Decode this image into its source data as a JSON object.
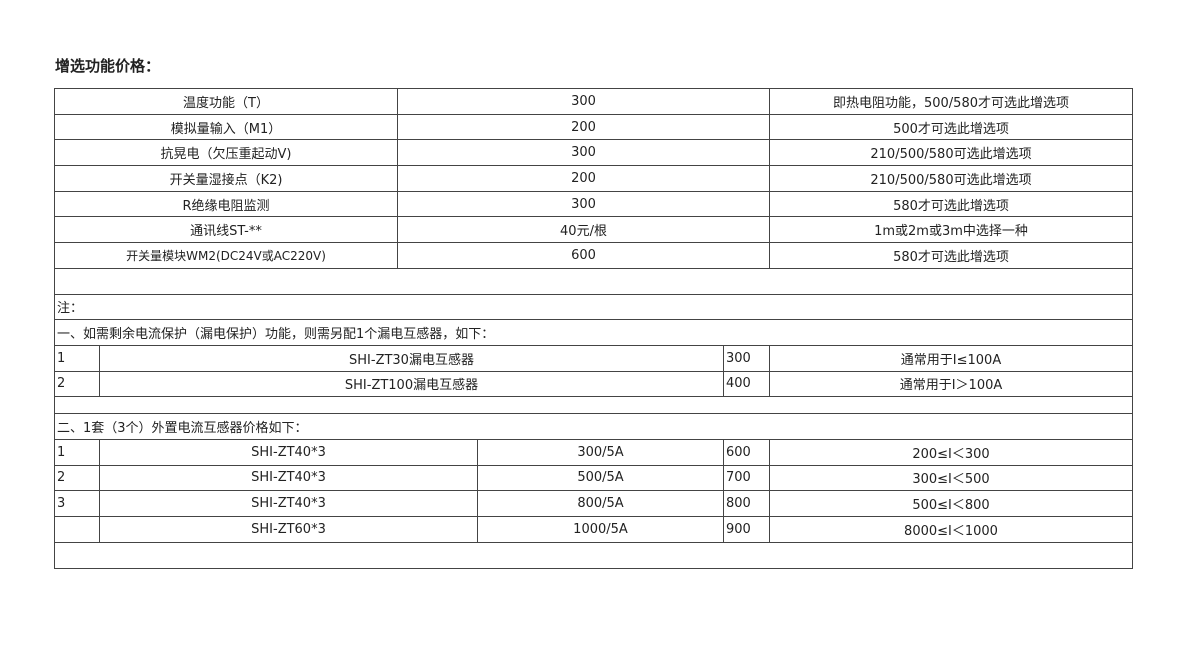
{
  "title": "增选功能价格：",
  "options": [
    {
      "name": "温度功能（T）",
      "price": "300",
      "note": "即热电阻功能，500/580才可选此增选项"
    },
    {
      "name": "模拟量输入（M1）",
      "price": "200",
      "note": "500才可选此增选项"
    },
    {
      "name": "抗晃电（欠压重起动V)",
      "price": "300",
      "note": "210/500/580可选此增选项"
    },
    {
      "name": "开关量湿接点（K2)",
      "price": "200",
      "note": "210/500/580可选此增选项"
    },
    {
      "name": "R绝缘电阻监测",
      "price": "300",
      "note": "580才可选此增选项"
    },
    {
      "name": "通讯线ST-**",
      "price": "40元/根",
      "note": "1m或2m或3m中选择一种"
    },
    {
      "name": "开关量模块WM2(DC24V或AC220V)",
      "price": "600",
      "note": "580才可选此增选项"
    }
  ],
  "note_label": "注：",
  "leakage": {
    "heading": "一、如需剩余电流保护（漏电保护）功能，则需另配1个漏电互感器，如下：",
    "rows": [
      {
        "no": "1",
        "model": "SHI-ZT30漏电互感器",
        "price": "300",
        "usage": "通常用于I≤100A"
      },
      {
        "no": "2",
        "model": "SHI-ZT100漏电互感器",
        "price": "400",
        "usage": "通常用于I＞100A"
      }
    ]
  },
  "ct": {
    "heading": "二、1套（3个）外置电流互感器价格如下：",
    "rows": [
      {
        "no": "1",
        "model": "SHI-ZT40*3",
        "ratio": "300/5A",
        "price": "600",
        "range": "200≤I＜300"
      },
      {
        "no": "2",
        "model": "SHI-ZT40*3",
        "ratio": "500/5A",
        "price": "700",
        "range": "300≤I＜500"
      },
      {
        "no": "3",
        "model": "SHI-ZT40*3",
        "ratio": "800/5A",
        "price": "800",
        "range": "500≤I＜800"
      },
      {
        "no": "",
        "model": "SHI-ZT60*3",
        "ratio": "1000/5A",
        "price": "900",
        "range": "8000≤I＜1000"
      }
    ]
  }
}
